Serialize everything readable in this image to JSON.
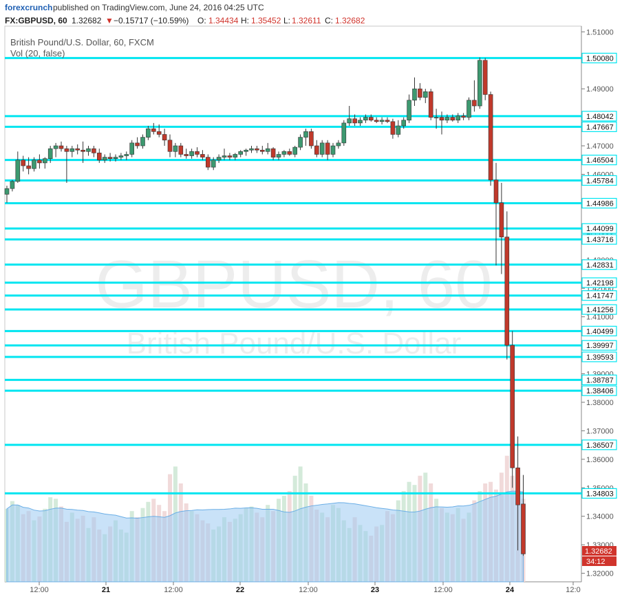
{
  "header": {
    "brand": "forexcrunch",
    "published_text": "published on TradingView.com, June 24, 2016 04:25 UTC"
  },
  "ohlc_bar": {
    "symbol": "FX:GBPUSD, 60",
    "last": "1.32682",
    "change_arrow": "▼",
    "change": "−0.15717 (−10.59%)",
    "o_label": "O:",
    "o": "1.34434",
    "h_label": "H:",
    "h": "1.35452",
    "l_label": "L:",
    "l": "1.32611",
    "c_label": "C:",
    "c": "1.32682"
  },
  "legend": {
    "title": "British Pound/U.S. Dollar, 60, FXCM",
    "volume": "Vol (20, false)"
  },
  "watermark": {
    "main": "GBPUSD, 60",
    "sub": "British Pound/U.S. Dollar"
  },
  "countdown": "34:12",
  "colors": {
    "up": "#3d9970",
    "down": "#c0392b",
    "level_line": "#00e5f0",
    "vol_up": "#cfe8d6",
    "vol_down": "#f0d6d6",
    "vol_ma": "#9ccbf2",
    "brand": "#1e5fb3"
  },
  "chart_data": {
    "type": "candlestick",
    "symbol": "GBPUSD",
    "interval": "60",
    "ylim": [
      1.317,
      1.512
    ],
    "y_ticks": [
      1.51,
      1.49,
      1.48,
      1.47,
      1.46,
      1.45,
      1.44,
      1.43,
      1.42,
      1.41,
      1.4,
      1.39,
      1.38,
      1.37,
      1.36,
      1.35,
      1.34,
      1.33,
      1.32
    ],
    "y_tick_labels": [
      "1.51000",
      "1.49000",
      "1.48000",
      "1.47000",
      "1.46000",
      "1.45000",
      "1.44000",
      "1.43000",
      "1.42000",
      "1.41000",
      "1.40000",
      "1.39000",
      "1.38000",
      "1.37000",
      "1.36000",
      "1.35000",
      "1.34000",
      "1.33000",
      "1.32000"
    ],
    "x_tick_labels": [
      "12:00",
      "21",
      "12:00",
      "22",
      "12:00",
      "23",
      "12:00",
      "24",
      "12:0"
    ],
    "horizontal_levels": [
      "1.50080",
      "1.48042",
      "1.47667",
      "1.46504",
      "1.45784",
      "1.44986",
      "1.44099",
      "1.43716",
      "1.42831",
      "1.42198",
      "1.41747",
      "1.41256",
      "1.40499",
      "1.39997",
      "1.39593",
      "1.38787",
      "1.38406",
      "1.36507",
      "1.34803"
    ],
    "last_price_label": "1.32682",
    "candles": [
      {
        "o": 1.453,
        "h": 1.456,
        "l": 1.45,
        "c": 1.455
      },
      {
        "o": 1.455,
        "h": 1.458,
        "l": 1.454,
        "c": 1.4575
      },
      {
        "o": 1.4575,
        "h": 1.468,
        "l": 1.457,
        "c": 1.465
      },
      {
        "o": 1.465,
        "h": 1.4665,
        "l": 1.461,
        "c": 1.463
      },
      {
        "o": 1.463,
        "h": 1.466,
        "l": 1.46,
        "c": 1.462
      },
      {
        "o": 1.462,
        "h": 1.466,
        "l": 1.461,
        "c": 1.465
      },
      {
        "o": 1.465,
        "h": 1.467,
        "l": 1.462,
        "c": 1.464
      },
      {
        "o": 1.464,
        "h": 1.466,
        "l": 1.462,
        "c": 1.4655
      },
      {
        "o": 1.4655,
        "h": 1.47,
        "l": 1.464,
        "c": 1.469
      },
      {
        "o": 1.469,
        "h": 1.471,
        "l": 1.466,
        "c": 1.47
      },
      {
        "o": 1.47,
        "h": 1.4715,
        "l": 1.468,
        "c": 1.469
      },
      {
        "o": 1.469,
        "h": 1.47,
        "l": 1.457,
        "c": 1.468
      },
      {
        "o": 1.468,
        "h": 1.47,
        "l": 1.466,
        "c": 1.469
      },
      {
        "o": 1.469,
        "h": 1.4705,
        "l": 1.467,
        "c": 1.4685
      },
      {
        "o": 1.4685,
        "h": 1.4715,
        "l": 1.464,
        "c": 1.468
      },
      {
        "o": 1.468,
        "h": 1.47,
        "l": 1.4665,
        "c": 1.469
      },
      {
        "o": 1.469,
        "h": 1.47,
        "l": 1.466,
        "c": 1.4675
      },
      {
        "o": 1.4675,
        "h": 1.469,
        "l": 1.464,
        "c": 1.465
      },
      {
        "o": 1.465,
        "h": 1.467,
        "l": 1.464,
        "c": 1.466
      },
      {
        "o": 1.466,
        "h": 1.4675,
        "l": 1.4645,
        "c": 1.4655
      },
      {
        "o": 1.4655,
        "h": 1.467,
        "l": 1.4645,
        "c": 1.466
      },
      {
        "o": 1.466,
        "h": 1.4675,
        "l": 1.465,
        "c": 1.4665
      },
      {
        "o": 1.4665,
        "h": 1.468,
        "l": 1.465,
        "c": 1.467
      },
      {
        "o": 1.467,
        "h": 1.472,
        "l": 1.466,
        "c": 1.471
      },
      {
        "o": 1.471,
        "h": 1.473,
        "l": 1.469,
        "c": 1.47
      },
      {
        "o": 1.47,
        "h": 1.474,
        "l": 1.469,
        "c": 1.473
      },
      {
        "o": 1.473,
        "h": 1.477,
        "l": 1.472,
        "c": 1.476
      },
      {
        "o": 1.476,
        "h": 1.478,
        "l": 1.474,
        "c": 1.475
      },
      {
        "o": 1.475,
        "h": 1.4775,
        "l": 1.473,
        "c": 1.474
      },
      {
        "o": 1.474,
        "h": 1.476,
        "l": 1.47,
        "c": 1.472
      },
      {
        "o": 1.472,
        "h": 1.474,
        "l": 1.466,
        "c": 1.468
      },
      {
        "o": 1.468,
        "h": 1.471,
        "l": 1.466,
        "c": 1.47
      },
      {
        "o": 1.47,
        "h": 1.471,
        "l": 1.466,
        "c": 1.467
      },
      {
        "o": 1.467,
        "h": 1.469,
        "l": 1.4655,
        "c": 1.4665
      },
      {
        "o": 1.4665,
        "h": 1.469,
        "l": 1.4655,
        "c": 1.468
      },
      {
        "o": 1.468,
        "h": 1.4695,
        "l": 1.466,
        "c": 1.467
      },
      {
        "o": 1.467,
        "h": 1.4685,
        "l": 1.465,
        "c": 1.466
      },
      {
        "o": 1.466,
        "h": 1.467,
        "l": 1.4615,
        "c": 1.4625
      },
      {
        "o": 1.4625,
        "h": 1.466,
        "l": 1.4615,
        "c": 1.465
      },
      {
        "o": 1.465,
        "h": 1.467,
        "l": 1.464,
        "c": 1.466
      },
      {
        "o": 1.466,
        "h": 1.469,
        "l": 1.465,
        "c": 1.4665
      },
      {
        "o": 1.4665,
        "h": 1.4675,
        "l": 1.465,
        "c": 1.466
      },
      {
        "o": 1.466,
        "h": 1.4675,
        "l": 1.465,
        "c": 1.467
      },
      {
        "o": 1.467,
        "h": 1.4685,
        "l": 1.466,
        "c": 1.468
      },
      {
        "o": 1.468,
        "h": 1.469,
        "l": 1.4665,
        "c": 1.4685
      },
      {
        "o": 1.4685,
        "h": 1.47,
        "l": 1.4675,
        "c": 1.469
      },
      {
        "o": 1.469,
        "h": 1.47,
        "l": 1.4675,
        "c": 1.4685
      },
      {
        "o": 1.4685,
        "h": 1.47,
        "l": 1.467,
        "c": 1.468
      },
      {
        "o": 1.468,
        "h": 1.471,
        "l": 1.467,
        "c": 1.469
      },
      {
        "o": 1.469,
        "h": 1.4695,
        "l": 1.465,
        "c": 1.466
      },
      {
        "o": 1.466,
        "h": 1.468,
        "l": 1.465,
        "c": 1.467
      },
      {
        "o": 1.467,
        "h": 1.4685,
        "l": 1.466,
        "c": 1.468
      },
      {
        "o": 1.468,
        "h": 1.469,
        "l": 1.4665,
        "c": 1.467
      },
      {
        "o": 1.467,
        "h": 1.47,
        "l": 1.466,
        "c": 1.4695
      },
      {
        "o": 1.4695,
        "h": 1.474,
        "l": 1.4685,
        "c": 1.473
      },
      {
        "o": 1.473,
        "h": 1.476,
        "l": 1.47,
        "c": 1.475
      },
      {
        "o": 1.475,
        "h": 1.476,
        "l": 1.469,
        "c": 1.47
      },
      {
        "o": 1.47,
        "h": 1.472,
        "l": 1.466,
        "c": 1.467
      },
      {
        "o": 1.467,
        "h": 1.472,
        "l": 1.466,
        "c": 1.471
      },
      {
        "o": 1.471,
        "h": 1.472,
        "l": 1.465,
        "c": 1.467
      },
      {
        "o": 1.467,
        "h": 1.471,
        "l": 1.466,
        "c": 1.47
      },
      {
        "o": 1.47,
        "h": 1.472,
        "l": 1.469,
        "c": 1.471
      },
      {
        "o": 1.471,
        "h": 1.479,
        "l": 1.47,
        "c": 1.478
      },
      {
        "o": 1.478,
        "h": 1.484,
        "l": 1.477,
        "c": 1.4795
      },
      {
        "o": 1.4795,
        "h": 1.481,
        "l": 1.477,
        "c": 1.478
      },
      {
        "o": 1.478,
        "h": 1.48,
        "l": 1.477,
        "c": 1.479
      },
      {
        "o": 1.479,
        "h": 1.481,
        "l": 1.478,
        "c": 1.48
      },
      {
        "o": 1.48,
        "h": 1.481,
        "l": 1.4785,
        "c": 1.479
      },
      {
        "o": 1.479,
        "h": 1.48,
        "l": 1.478,
        "c": 1.4785
      },
      {
        "o": 1.4785,
        "h": 1.48,
        "l": 1.4775,
        "c": 1.479
      },
      {
        "o": 1.479,
        "h": 1.48,
        "l": 1.478,
        "c": 1.4785
      },
      {
        "o": 1.4785,
        "h": 1.4795,
        "l": 1.4725,
        "c": 1.474
      },
      {
        "o": 1.474,
        "h": 1.479,
        "l": 1.473,
        "c": 1.477
      },
      {
        "o": 1.477,
        "h": 1.48,
        "l": 1.476,
        "c": 1.479
      },
      {
        "o": 1.479,
        "h": 1.488,
        "l": 1.478,
        "c": 1.486
      },
      {
        "o": 1.486,
        "h": 1.494,
        "l": 1.484,
        "c": 1.49
      },
      {
        "o": 1.49,
        "h": 1.492,
        "l": 1.486,
        "c": 1.487
      },
      {
        "o": 1.487,
        "h": 1.49,
        "l": 1.485,
        "c": 1.489
      },
      {
        "o": 1.489,
        "h": 1.49,
        "l": 1.479,
        "c": 1.48
      },
      {
        "o": 1.48,
        "h": 1.483,
        "l": 1.476,
        "c": 1.48
      },
      {
        "o": 1.48,
        "h": 1.482,
        "l": 1.474,
        "c": 1.479
      },
      {
        "o": 1.479,
        "h": 1.481,
        "l": 1.478,
        "c": 1.48
      },
      {
        "o": 1.48,
        "h": 1.481,
        "l": 1.4785,
        "c": 1.479
      },
      {
        "o": 1.479,
        "h": 1.4815,
        "l": 1.478,
        "c": 1.4805
      },
      {
        "o": 1.4805,
        "h": 1.4815,
        "l": 1.479,
        "c": 1.48
      },
      {
        "o": 1.48,
        "h": 1.487,
        "l": 1.479,
        "c": 1.486
      },
      {
        "o": 1.486,
        "h": 1.493,
        "l": 1.482,
        "c": 1.484
      },
      {
        "o": 1.484,
        "h": 1.501,
        "l": 1.483,
        "c": 1.5
      },
      {
        "o": 1.5,
        "h": 1.5008,
        "l": 1.486,
        "c": 1.488
      },
      {
        "o": 1.488,
        "h": 1.489,
        "l": 1.456,
        "c": 1.458
      },
      {
        "o": 1.458,
        "h": 1.464,
        "l": 1.428,
        "c": 1.45
      },
      {
        "o": 1.45,
        "h": 1.457,
        "l": 1.425,
        "c": 1.438
      },
      {
        "o": 1.438,
        "h": 1.447,
        "l": 1.395,
        "c": 1.4
      },
      {
        "o": 1.4,
        "h": 1.405,
        "l": 1.35,
        "c": 1.357
      },
      {
        "o": 1.357,
        "h": 1.368,
        "l": 1.328,
        "c": 1.344
      },
      {
        "o": 1.3443,
        "h": 1.3545,
        "l": 1.3261,
        "c": 1.3268
      }
    ],
    "volumes": [
      95,
      105,
      100,
      88,
      92,
      80,
      85,
      95,
      110,
      108,
      98,
      78,
      90,
      82,
      86,
      70,
      84,
      68,
      62,
      72,
      80,
      68,
      64,
      92,
      84,
      96,
      104,
      108,
      100,
      92,
      140,
      150,
      128,
      102,
      92,
      88,
      80,
      76,
      68,
      72,
      84,
      78,
      82,
      88,
      96,
      98,
      90,
      84,
      100,
      92,
      108,
      112,
      118,
      138,
      150,
      128,
      112,
      94,
      90,
      84,
      100,
      96,
      80,
      70,
      84,
      74,
      66,
      60,
      72,
      74,
      92,
      88,
      106,
      118,
      130,
      126,
      138,
      142,
      128,
      108,
      96,
      90,
      88,
      96,
      82,
      90,
      106,
      118,
      128,
      130,
      120,
      142,
      164,
      138,
      126,
      108
    ]
  }
}
